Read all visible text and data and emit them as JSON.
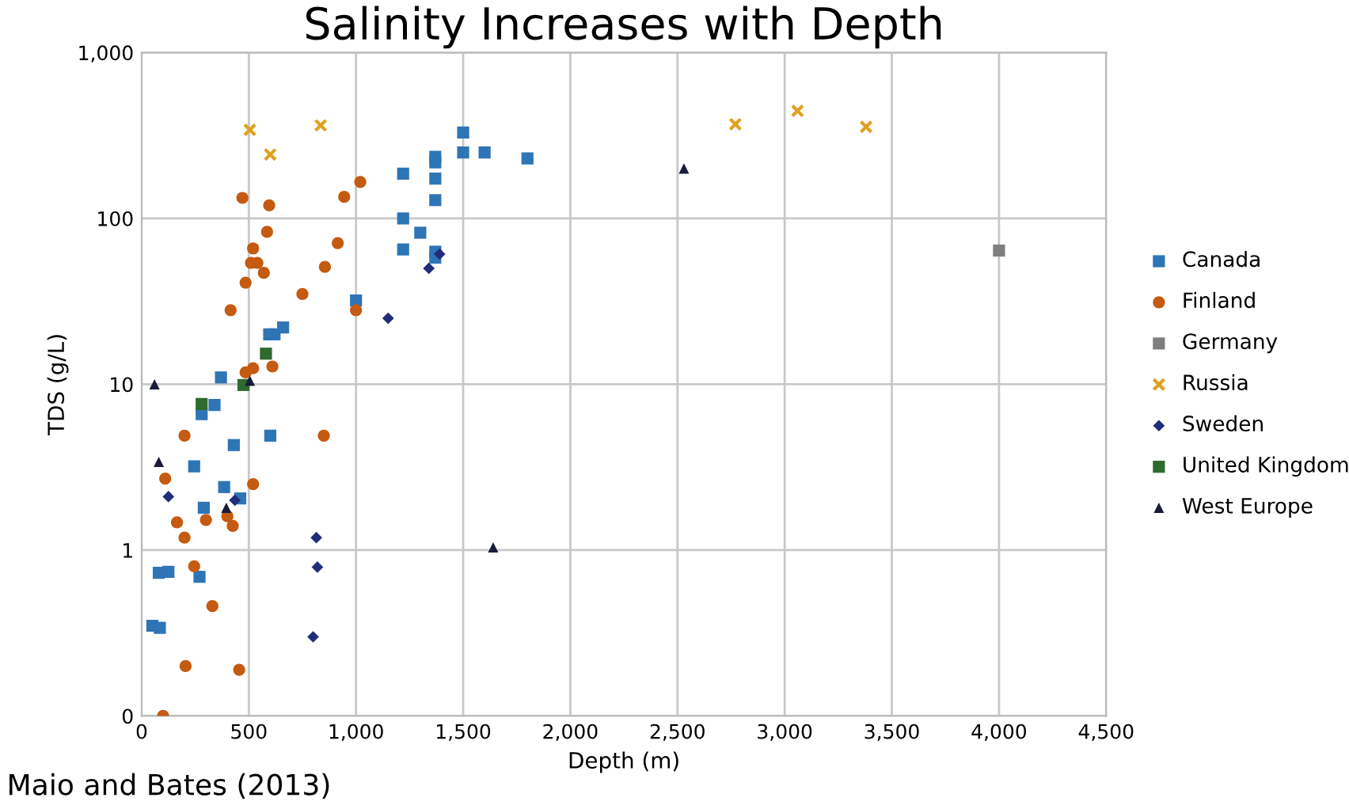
{
  "chart_data": {
    "type": "scatter",
    "title": "Salinity Increases with Depth",
    "xlabel": "Depth (m)",
    "ylabel": "TDS (g/L)",
    "log": "y",
    "xlim": [
      0,
      4500
    ],
    "xticks": [
      {
        "value": 0,
        "label": "0"
      },
      {
        "value": 500,
        "label": "500"
      },
      {
        "value": 1000,
        "label": "1,000"
      },
      {
        "value": 1500,
        "label": "1,500"
      },
      {
        "value": 2000,
        "label": "2,000"
      },
      {
        "value": 2500,
        "label": "2,500"
      },
      {
        "value": 3000,
        "label": "3,000"
      },
      {
        "value": 3500,
        "label": "3,500"
      },
      {
        "value": 4000,
        "label": "4,000"
      },
      {
        "value": 4500,
        "label": "4,500"
      }
    ],
    "ylim": [
      0.1,
      1000
    ],
    "yticks": [
      {
        "value": 0.1,
        "label": "0"
      },
      {
        "value": 1,
        "label": "1"
      },
      {
        "value": 10,
        "label": "10"
      },
      {
        "value": 100,
        "label": "100"
      },
      {
        "value": 1000,
        "label": "1,000"
      }
    ],
    "grid": true,
    "legend": "right",
    "annotations": [
      "Maio and Bates (2013)"
    ],
    "series": [
      {
        "name": "Canada",
        "color": "#2e75b6",
        "marker": "square",
        "x": [
          1500,
          1500,
          1600,
          1800,
          1370,
          1370,
          1370,
          1370,
          1220,
          1220,
          1300,
          1220,
          1370,
          1370,
          1000,
          660,
          620,
          595,
          370,
          340,
          280,
          600,
          430,
          245,
          385,
          460,
          290,
          80,
          125,
          270,
          50,
          85
        ],
        "values": [
          330,
          250,
          250,
          230,
          235,
          218,
          174,
          129,
          186,
          100,
          82,
          65,
          63,
          58,
          32,
          22,
          20,
          20,
          11,
          7.5,
          6.6,
          4.9,
          4.3,
          3.2,
          2.4,
          2.05,
          1.8,
          0.73,
          0.74,
          0.69,
          0.35,
          0.34
        ]
      },
      {
        "name": "Finland",
        "color": "#c55a11",
        "marker": "circle",
        "x": [
          470,
          595,
          585,
          520,
          510,
          540,
          570,
          485,
          415,
          750,
          855,
          915,
          945,
          1020,
          1000,
          485,
          520,
          610,
          200,
          850,
          520,
          110,
          165,
          300,
          400,
          425,
          200,
          245,
          330,
          205,
          455,
          100
        ],
        "values": [
          133,
          120,
          83,
          66,
          54,
          54,
          47,
          41,
          28,
          35,
          51,
          71,
          135,
          166,
          28,
          11.8,
          12.5,
          12.8,
          4.9,
          4.9,
          2.5,
          2.7,
          1.47,
          1.52,
          1.6,
          1.4,
          1.19,
          0.8,
          0.46,
          0.2,
          0.19,
          0.1
        ]
      },
      {
        "name": "Germany",
        "color": "#7f7f7f",
        "marker": "square",
        "x": [
          4000
        ],
        "values": [
          64
        ]
      },
      {
        "name": "Russia",
        "color": "#e0a020",
        "marker": "cross",
        "x": [
          505,
          600,
          835,
          2770,
          3060,
          3380
        ],
        "values": [
          342,
          243,
          364,
          370,
          445,
          357
        ]
      },
      {
        "name": "Sweden",
        "color": "#1f2d7a",
        "marker": "diamond",
        "x": [
          1150,
          1340,
          1390,
          125,
          435,
          815,
          820,
          800
        ],
        "values": [
          25,
          50,
          61,
          2.1,
          2.0,
          1.19,
          0.79,
          0.3
        ]
      },
      {
        "name": "United Kingdom",
        "color": "#2e6b2e",
        "marker": "square",
        "x": [
          280,
          475,
          580
        ],
        "values": [
          7.6,
          9.9,
          15.3
        ]
      },
      {
        "name": "West Europe",
        "color": "#1a1a3a",
        "marker": "triangle",
        "x": [
          60,
          505,
          80,
          395,
          1640,
          2530
        ],
        "values": [
          10,
          10.5,
          3.4,
          1.8,
          1.04,
          200
        ]
      }
    ]
  }
}
